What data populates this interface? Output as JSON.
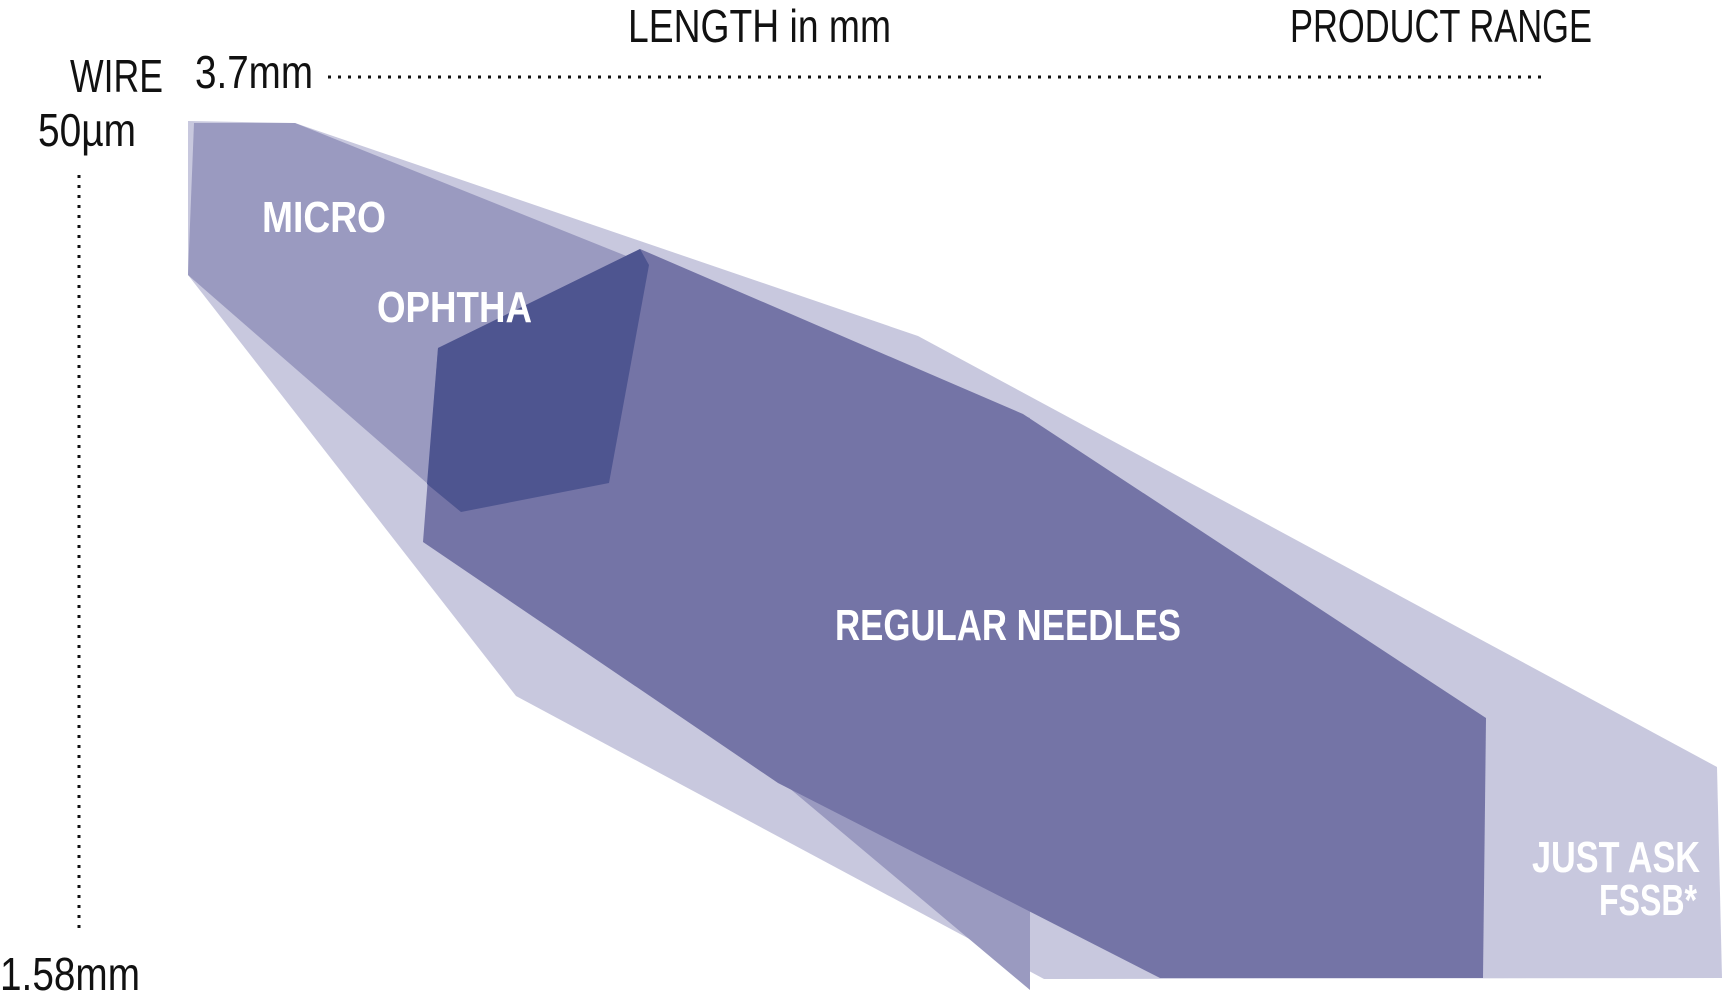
{
  "header": {
    "length_label": "LENGTH in mm",
    "product_range_label": "PRODUCT RANGE"
  },
  "axes": {
    "wire_label": "WIRE",
    "length_start": "3.7mm",
    "wire_start": "50µm",
    "wire_end": "1.58mm"
  },
  "regions": {
    "micro": "MICRO",
    "ophtha": "OPHTHA",
    "regular": "REGULAR NEEDLES",
    "just_ask_line1": "JUST ASK",
    "just_ask_line2": "FSSB*"
  },
  "colors": {
    "outer_range": "#c8c8de",
    "micro": "#9a9ac0",
    "regular": "#7474a6",
    "ophtha": "#4e5590",
    "text": "#111111",
    "label": "#ffffff"
  }
}
